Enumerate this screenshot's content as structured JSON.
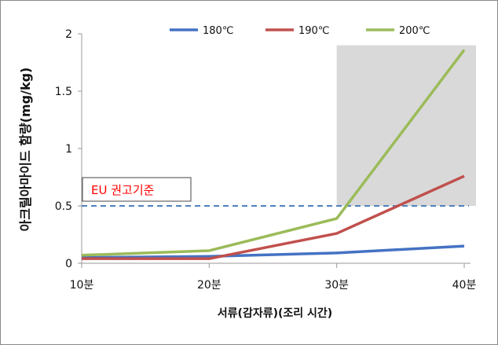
{
  "chart_data": {
    "type": "line",
    "categories": [
      "10분",
      "20분",
      "30분",
      "40분"
    ],
    "xlabel": "서류(감자류)(조리 시간)",
    "ylabel": "아크릴아마이드 함량(mg/kg)",
    "ylim": [
      0,
      2
    ],
    "yticks": [
      "0",
      "0.5",
      "1",
      "1.5",
      "2"
    ],
    "grid": false,
    "legend_position": "top",
    "series": [
      {
        "name": "180℃",
        "color": "#4472c4",
        "values": [
          0.05,
          0.06,
          0.09,
          0.15
        ]
      },
      {
        "name": "190℃",
        "color": "#c0504d",
        "values": [
          0.04,
          0.04,
          0.26,
          0.76
        ]
      },
      {
        "name": "200℃",
        "color": "#9bbb59",
        "values": [
          0.07,
          0.11,
          0.39,
          1.86
        ]
      }
    ],
    "reference_line": {
      "value": 0.5,
      "color": "#4f81bd",
      "style": "dashed"
    },
    "annotation": {
      "text": "EU 권고기준",
      "color": "#ff0000"
    },
    "shaded_region": {
      "x_from": 30,
      "x_to": 40,
      "y_from": 0.5,
      "y_to": 1.9,
      "color": "#d9d9d9"
    }
  }
}
